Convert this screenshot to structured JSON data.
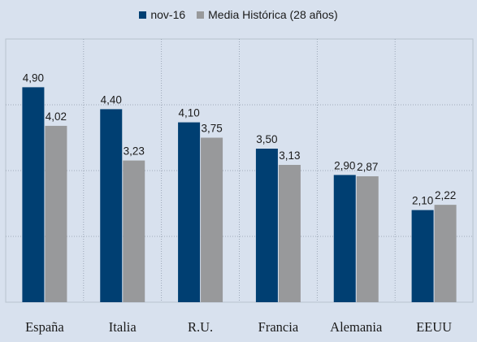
{
  "chart_data": {
    "type": "bar",
    "title": "",
    "xlabel": "",
    "ylabel": "",
    "categories": [
      "España",
      "Italia",
      "R.U.",
      "Francia",
      "Alemania",
      "EEUU"
    ],
    "series": [
      {
        "name": "nov-16",
        "color": "#003f72",
        "values": [
          4.9,
          4.4,
          4.1,
          3.5,
          2.9,
          2.1
        ]
      },
      {
        "name": "Media Histórica (28 años)",
        "color": "#98999b",
        "values": [
          4.02,
          3.23,
          3.75,
          3.13,
          2.87,
          2.22
        ]
      }
    ],
    "value_labels": [
      [
        "4,90",
        "4,40",
        "4,10",
        "3,50",
        "2,90",
        "2,10"
      ],
      [
        "4,02",
        "3,23",
        "3,75",
        "3,13",
        "2,87",
        "2,22"
      ]
    ],
    "ylim": [
      0,
      6
    ],
    "gridlines": [
      1.5,
      3,
      4.5
    ],
    "grid": true,
    "legend_position": "top-center",
    "background_color": "#d8e1ee"
  }
}
